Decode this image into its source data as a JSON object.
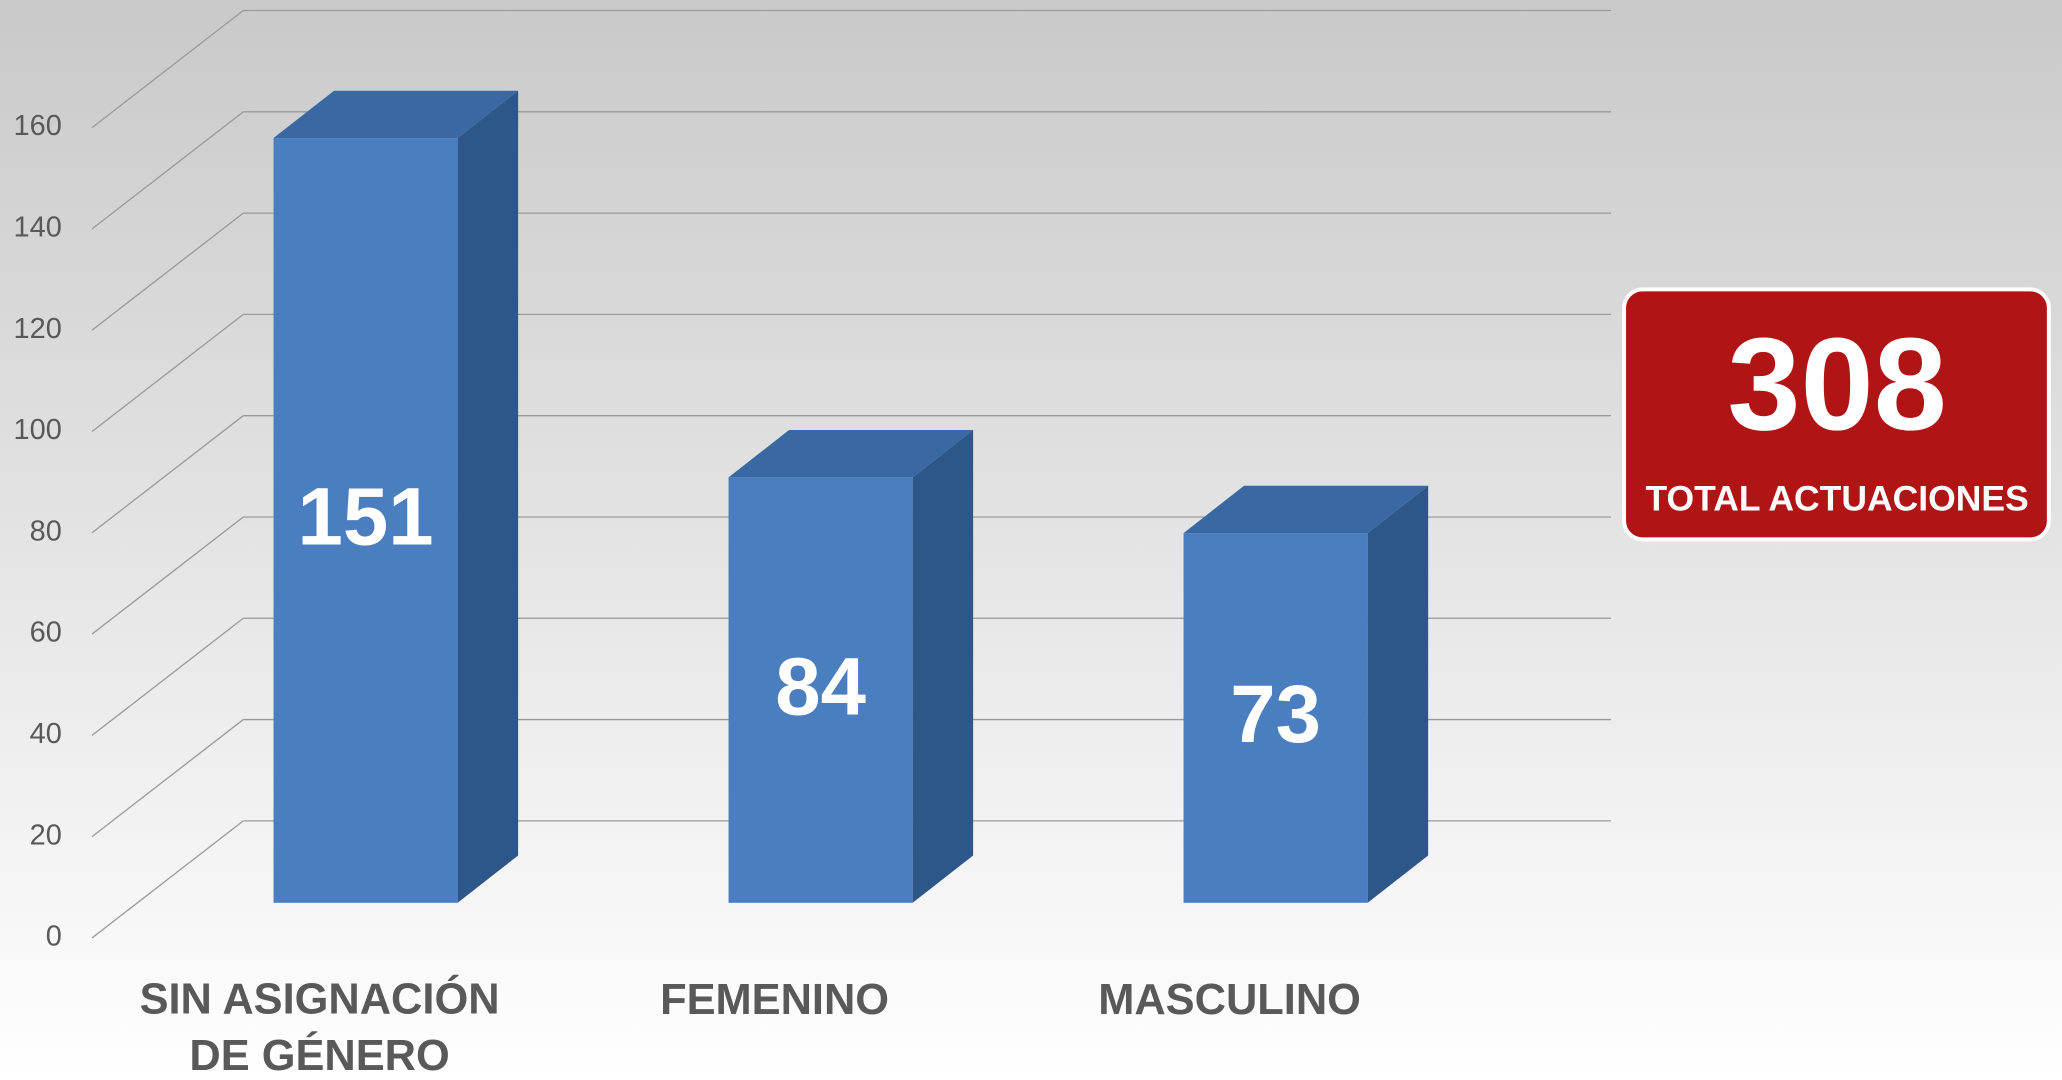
{
  "chart_data": {
    "type": "bar3d",
    "categories": [
      "SIN ASIGNACIÓN DE GÉNERO",
      "FEMENINO",
      "MASCULINO"
    ],
    "values": [
      151,
      84,
      73
    ],
    "color": "#4a7ebf",
    "ylim": [
      0,
      160
    ],
    "yticks": [
      0,
      20,
      40,
      60,
      80,
      100,
      120,
      140,
      160
    ],
    "grid": true,
    "total": 308,
    "total_label": "TOTAL ACTUACIONES"
  }
}
